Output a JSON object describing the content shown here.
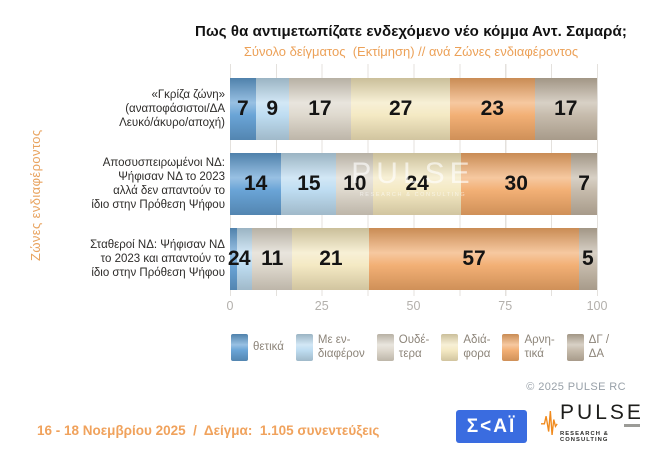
{
  "header": {
    "title": "Πως θα αντιμετωπίζατε ενδεχόμενο νέο κόμμα Αντ. Σαμαρά;",
    "subtitle": "Σύνολο δείγματος  (Εκτίμηση) // ανά Ζώνες ενδιαφέροντος"
  },
  "axis_group_label": "Ζώνες ενδιαφέροντος",
  "chart_data": {
    "type": "bar",
    "stacked": true,
    "horizontal": true,
    "xlim": [
      0,
      100
    ],
    "x_ticks": [
      0,
      25,
      50,
      75,
      100
    ],
    "minor_tick_step": 12.5,
    "grid": true,
    "legend_position": "bottom",
    "categories": [
      "«Γκρίζα ζώνη» (αναποφάσιστοι/ΔΑ Λευκό/άκυρο/αποχή)",
      "Αποσυσπειρωμένοι ΝΔ: Ψήφισαν ΝΔ το 2023 αλλά δεν απαντούν το ίδιο στην Πρόθεση Ψήφου",
      "Σταθεροί ΝΔ: Ψήφισαν ΝΔ το 2023 και απαντούν το ίδιο στην Πρόθεση Ψήφου"
    ],
    "series": [
      {
        "name": "θετικά",
        "color": "#599ad2",
        "values": [
          7,
          14,
          2
        ]
      },
      {
        "name": "Με ενδιαφέρον",
        "color": "#b7d9f0",
        "values": [
          9,
          15,
          4
        ]
      },
      {
        "name": "Ουδέτερα",
        "color": "#dbd5c9",
        "values": [
          17,
          10,
          11
        ]
      },
      {
        "name": "Αδιάφορα",
        "color": "#f3e7bd",
        "values": [
          27,
          24,
          21
        ]
      },
      {
        "name": "Αρνητικά",
        "color": "#f1a766",
        "values": [
          23,
          30,
          57
        ]
      },
      {
        "name": "ΔΓ / ΔΑ",
        "color": "#c0b4a3",
        "values": [
          17,
          7,
          5
        ]
      }
    ]
  },
  "row_labels_display": [
    "«Γκρίζα ζώνη»\n(αναποφάσιστοι/ΔΑ\nΛευκό/άκυρο/αποχή)",
    "Αποσυσπειρωμένοι ΝΔ:\nΨήφισαν ΝΔ το 2023\nαλλά δεν απαντούν το\nίδιο στην Πρόθεση Ψήφου",
    "Σταθεροί ΝΔ: Ψήφισαν ΝΔ\nτο 2023 και απαντούν το\nίδιο στην Πρόθεση Ψήφου"
  ],
  "legend_display": [
    "θετικά",
    "Με εν-\nδιαφέρον",
    "Ουδέ-\nτερα",
    "Αδιά-\nφορα",
    "Αρνη-\nτικά",
    "ΔΓ /\nΔΑ"
  ],
  "watermark": {
    "line1": "PULSE",
    "line2": "RESEARCH & CONSULTING"
  },
  "copyright": "© 2025 PULSE RC",
  "footer": {
    "fieldwork": "16 - 18 Νοεμβρίου 2025  /  Δείγμα:  1.105 συνεντεύξεις"
  },
  "logos": {
    "skai": {
      "text": "Σ<ΑΪ",
      "bg": "#3a6ce0"
    },
    "pulse": {
      "name": "PULSE",
      "tagline": "RESEARCH & CONSULTING",
      "accent": "#f08a1d"
    }
  },
  "colors": {
    "accent_orange": "#eca158",
    "grid": "#e4e1dd",
    "tick_label": "#b3b0ac",
    "legend_text": "#8d857a",
    "copyright_text": "#98a0a8"
  }
}
